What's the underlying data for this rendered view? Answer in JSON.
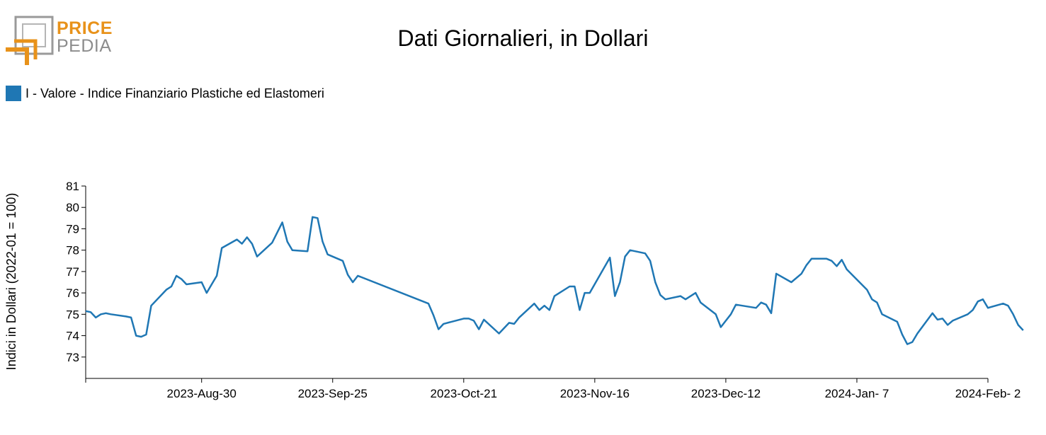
{
  "logo": {
    "line1": "PRICE",
    "line2": "PEDIA",
    "accent": "#e8921a",
    "gray": "#8c8c8c"
  },
  "chart_data": {
    "type": "line",
    "title": "Dati Giornalieri, in Dollari",
    "ylabel": "Indici in Dollari (2022-01 = 100)",
    "xlabel": "",
    "ylim": [
      72,
      81
    ],
    "yticks": [
      73,
      74,
      75,
      76,
      77,
      78,
      79,
      80,
      81
    ],
    "xlim": [
      "2023-08-07",
      "2024-02-02"
    ],
    "xticks": [
      {
        "date": "2023-08-30",
        "label": "2023-Aug-30"
      },
      {
        "date": "2023-09-25",
        "label": "2023-Sep-25"
      },
      {
        "date": "2023-10-21",
        "label": "2023-Oct-21"
      },
      {
        "date": "2023-11-16",
        "label": "2023-Nov-16"
      },
      {
        "date": "2023-12-12",
        "label": "2023-Dec-12"
      },
      {
        "date": "2024-01-07",
        "label": "2024-Jan- 7"
      },
      {
        "date": "2024-02-02",
        "label": "2024-Feb- 2"
      }
    ],
    "legend_position": "top-left",
    "grid": false,
    "series": [
      {
        "name": "I - Valore - Indice Finanziario Plastiche ed Elastomeri",
        "color": "#1f77b4",
        "points": [
          [
            "2023-08-07",
            75.15
          ],
          [
            "2023-08-08",
            75.1
          ],
          [
            "2023-08-09",
            74.85
          ],
          [
            "2023-08-10",
            75.0
          ],
          [
            "2023-08-11",
            75.05
          ],
          [
            "2023-08-12",
            75.0
          ],
          [
            "2023-08-15",
            74.9
          ],
          [
            "2023-08-16",
            74.85
          ],
          [
            "2023-08-17",
            74.0
          ],
          [
            "2023-08-18",
            73.95
          ],
          [
            "2023-08-19",
            74.05
          ],
          [
            "2023-08-20",
            75.4
          ],
          [
            "2023-08-23",
            76.15
          ],
          [
            "2023-08-24",
            76.3
          ],
          [
            "2023-08-25",
            76.8
          ],
          [
            "2023-08-26",
            76.65
          ],
          [
            "2023-08-27",
            76.4
          ],
          [
            "2023-08-30",
            76.5
          ],
          [
            "2023-08-31",
            76.0
          ],
          [
            "2023-09-01",
            76.4
          ],
          [
            "2023-09-02",
            76.8
          ],
          [
            "2023-09-03",
            78.1
          ],
          [
            "2023-09-06",
            78.5
          ],
          [
            "2023-09-07",
            78.3
          ],
          [
            "2023-09-08",
            78.6
          ],
          [
            "2023-09-09",
            78.3
          ],
          [
            "2023-09-10",
            77.7
          ],
          [
            "2023-09-13",
            78.35
          ],
          [
            "2023-09-15",
            79.3
          ],
          [
            "2023-09-16",
            78.4
          ],
          [
            "2023-09-17",
            78.0
          ],
          [
            "2023-09-20",
            77.95
          ],
          [
            "2023-09-21",
            79.55
          ],
          [
            "2023-09-22",
            79.5
          ],
          [
            "2023-09-23",
            78.4
          ],
          [
            "2023-09-24",
            77.8
          ],
          [
            "2023-09-27",
            77.5
          ],
          [
            "2023-09-28",
            76.85
          ],
          [
            "2023-09-29",
            76.5
          ],
          [
            "2023-09-30",
            76.8
          ],
          [
            "2023-10-14",
            75.5
          ],
          [
            "2023-10-15",
            74.95
          ],
          [
            "2023-10-16",
            74.3
          ],
          [
            "2023-10-17",
            74.55
          ],
          [
            "2023-10-21",
            74.8
          ],
          [
            "2023-10-22",
            74.8
          ],
          [
            "2023-10-23",
            74.7
          ],
          [
            "2023-10-24",
            74.3
          ],
          [
            "2023-10-25",
            74.75
          ],
          [
            "2023-10-28",
            74.1
          ],
          [
            "2023-10-30",
            74.6
          ],
          [
            "2023-10-31",
            74.55
          ],
          [
            "2023-11-01",
            74.85
          ],
          [
            "2023-11-04",
            75.5
          ],
          [
            "2023-11-05",
            75.2
          ],
          [
            "2023-11-06",
            75.4
          ],
          [
            "2023-11-07",
            75.2
          ],
          [
            "2023-11-08",
            75.85
          ],
          [
            "2023-11-11",
            76.3
          ],
          [
            "2023-11-12",
            76.3
          ],
          [
            "2023-11-13",
            75.2
          ],
          [
            "2023-11-14",
            76.0
          ],
          [
            "2023-11-15",
            76.0
          ],
          [
            "2023-11-19",
            77.65
          ],
          [
            "2023-11-20",
            75.85
          ],
          [
            "2023-11-21",
            76.5
          ],
          [
            "2023-11-22",
            77.7
          ],
          [
            "2023-11-23",
            78.0
          ],
          [
            "2023-11-26",
            77.85
          ],
          [
            "2023-11-27",
            77.5
          ],
          [
            "2023-11-28",
            76.5
          ],
          [
            "2023-11-29",
            75.9
          ],
          [
            "2023-11-30",
            75.7
          ],
          [
            "2023-12-03",
            75.85
          ],
          [
            "2023-12-04",
            75.7
          ],
          [
            "2023-12-06",
            76.0
          ],
          [
            "2023-12-07",
            75.55
          ],
          [
            "2023-12-10",
            75.0
          ],
          [
            "2023-12-11",
            74.4
          ],
          [
            "2023-12-12",
            74.7
          ],
          [
            "2023-12-13",
            75.0
          ],
          [
            "2023-12-14",
            75.45
          ],
          [
            "2023-12-18",
            75.3
          ],
          [
            "2023-12-19",
            75.55
          ],
          [
            "2023-12-20",
            75.45
          ],
          [
            "2023-12-21",
            75.05
          ],
          [
            "2023-12-22",
            76.9
          ],
          [
            "2023-12-25",
            76.5
          ],
          [
            "2023-12-27",
            76.9
          ],
          [
            "2023-12-28",
            77.3
          ],
          [
            "2023-12-29",
            77.6
          ],
          [
            "2024-01-01",
            77.6
          ],
          [
            "2024-01-02",
            77.5
          ],
          [
            "2024-01-03",
            77.25
          ],
          [
            "2024-01-04",
            77.55
          ],
          [
            "2024-01-05",
            77.1
          ],
          [
            "2024-01-09",
            76.15
          ],
          [
            "2024-01-10",
            75.7
          ],
          [
            "2024-01-11",
            75.55
          ],
          [
            "2024-01-12",
            75.0
          ],
          [
            "2024-01-15",
            74.65
          ],
          [
            "2024-01-16",
            74.05
          ],
          [
            "2024-01-17",
            73.6
          ],
          [
            "2024-01-18",
            73.7
          ],
          [
            "2024-01-19",
            74.1
          ],
          [
            "2024-01-22",
            75.05
          ],
          [
            "2024-01-23",
            74.75
          ],
          [
            "2024-01-24",
            74.8
          ],
          [
            "2024-01-25",
            74.5
          ],
          [
            "2024-01-26",
            74.7
          ],
          [
            "2024-01-29",
            75.0
          ],
          [
            "2024-01-30",
            75.2
          ],
          [
            "2024-01-31",
            75.6
          ],
          [
            "2024-02-01",
            75.7
          ],
          [
            "2024-02-02",
            75.3
          ],
          [
            "2024-02-05",
            75.5
          ],
          [
            "2024-02-06",
            75.4
          ],
          [
            "2024-02-07",
            75.0
          ],
          [
            "2024-02-08",
            74.5
          ],
          [
            "2024-02-09",
            74.25
          ]
        ]
      }
    ]
  }
}
